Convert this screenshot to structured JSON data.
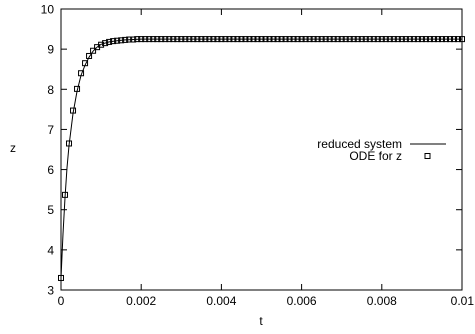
{
  "chart_data": {
    "type": "line",
    "xlabel": "t",
    "ylabel": "z",
    "xlim": [
      0,
      0.01
    ],
    "ylim": [
      3,
      10
    ],
    "xticks": [
      "0",
      "0.002",
      "0.004",
      "0.006",
      "0.008",
      "0.01"
    ],
    "yticks": [
      "3",
      "4",
      "5",
      "6",
      "7",
      "8",
      "9",
      "10"
    ],
    "grid": false,
    "legend_position": "right-middle",
    "legend": [
      "reduced system",
      "ODE for z"
    ],
    "series": [
      {
        "name": "reduced system",
        "style": "line",
        "color": "#000000",
        "x": [
          0,
          5e-05,
          0.0001,
          0.00015,
          0.0002,
          0.0003,
          0.0004,
          0.0005,
          0.0006,
          0.0007,
          0.0008,
          0.0009,
          0.001,
          0.0012,
          0.0014,
          0.0016,
          0.0018,
          0.002,
          0.0025,
          0.003,
          0.004,
          0.005,
          0.006,
          0.007,
          0.008,
          0.009,
          0.01
        ],
        "y": [
          3.3,
          4.4,
          5.3,
          6.05,
          6.6,
          7.4,
          7.95,
          8.35,
          8.6,
          8.8,
          8.95,
          9.05,
          9.12,
          9.18,
          9.21,
          9.23,
          9.24,
          9.25,
          9.25,
          9.25,
          9.25,
          9.25,
          9.25,
          9.25,
          9.25,
          9.25,
          9.25
        ]
      },
      {
        "name": "ODE for z",
        "style": "square-markers",
        "color": "#000000",
        "x": [
          0,
          0.0001,
          0.0002,
          0.0003,
          0.0004,
          0.0005,
          0.0006,
          0.0007,
          0.0008,
          0.0009,
          0.001,
          0.0011,
          0.0012,
          0.0013,
          0.0014,
          0.0015,
          0.0016,
          0.0017,
          0.0018,
          0.0019,
          0.002,
          0.0021,
          0.0022,
          0.0023,
          0.0024,
          0.0025,
          0.0026,
          0.0027,
          0.0028,
          0.0029,
          0.003,
          0.0031,
          0.0032,
          0.0033,
          0.0034,
          0.0035,
          0.0036,
          0.0037,
          0.0038,
          0.0039,
          0.004,
          0.0041,
          0.0042,
          0.0043,
          0.0044,
          0.0045,
          0.0046,
          0.0047,
          0.0048,
          0.0049,
          0.005,
          0.0051,
          0.0052,
          0.0053,
          0.0054,
          0.0055,
          0.0056,
          0.0057,
          0.0058,
          0.0059,
          0.006,
          0.0061,
          0.0062,
          0.0063,
          0.0064,
          0.0065,
          0.0066,
          0.0067,
          0.0068,
          0.0069,
          0.007,
          0.0071,
          0.0072,
          0.0073,
          0.0074,
          0.0075,
          0.0076,
          0.0077,
          0.0078,
          0.0079,
          0.008,
          0.0081,
          0.0082,
          0.0083,
          0.0084,
          0.0085,
          0.0086,
          0.0087,
          0.0088,
          0.0089,
          0.009,
          0.0091,
          0.0092,
          0.0093,
          0.0094,
          0.0095,
          0.0096,
          0.0097,
          0.0098,
          0.0099,
          0.01
        ],
        "y": [
          3.3,
          5.37,
          6.65,
          7.47,
          8.01,
          8.4,
          8.65,
          8.83,
          8.96,
          9.05,
          9.11,
          9.15,
          9.18,
          9.2,
          9.21,
          9.22,
          9.23,
          9.24,
          9.24,
          9.25,
          9.25,
          9.25,
          9.25,
          9.25,
          9.25,
          9.25,
          9.25,
          9.25,
          9.25,
          9.25,
          9.25,
          9.25,
          9.25,
          9.25,
          9.25,
          9.25,
          9.25,
          9.25,
          9.25,
          9.25,
          9.25,
          9.25,
          9.25,
          9.25,
          9.25,
          9.25,
          9.25,
          9.25,
          9.25,
          9.25,
          9.25,
          9.25,
          9.25,
          9.25,
          9.25,
          9.25,
          9.25,
          9.25,
          9.25,
          9.25,
          9.25,
          9.25,
          9.25,
          9.25,
          9.25,
          9.25,
          9.25,
          9.25,
          9.25,
          9.25,
          9.25,
          9.25,
          9.25,
          9.25,
          9.25,
          9.25,
          9.25,
          9.25,
          9.25,
          9.25,
          9.25,
          9.25,
          9.25,
          9.25,
          9.25,
          9.25,
          9.25,
          9.25,
          9.25,
          9.25,
          9.25,
          9.25,
          9.25,
          9.25,
          9.25,
          9.25,
          9.25,
          9.25,
          9.25,
          9.25,
          9.25
        ]
      }
    ]
  }
}
